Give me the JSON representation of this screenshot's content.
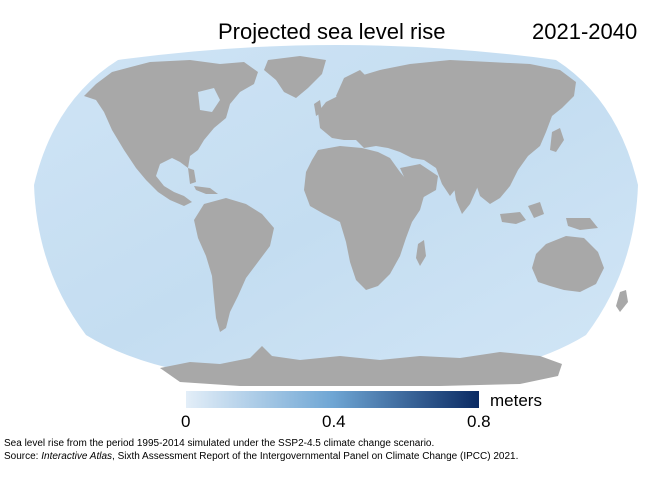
{
  "header": {
    "title": "Projected sea level rise",
    "period": "2021-2040"
  },
  "legend": {
    "unit": "meters",
    "ticks": [
      "0",
      "0.4",
      "0.8"
    ],
    "color_low": "#e3eef8",
    "color_mid": "#6fa6d4",
    "color_high": "#0a2a63"
  },
  "colors": {
    "ocean": "#c9e0f2",
    "land": "#a8a8a8"
  },
  "caption": {
    "line1": "Sea level rise from the period 1995-2014 simulated under the SSP2-4.5 climate change scenario.",
    "line2_prefix": "Source: ",
    "line2_italic": "Interactive Atlas",
    "line2_rest": ", Sixth Assessment Report of the Intergovernmental Panel on Climate Change (IPCC) 2021."
  }
}
